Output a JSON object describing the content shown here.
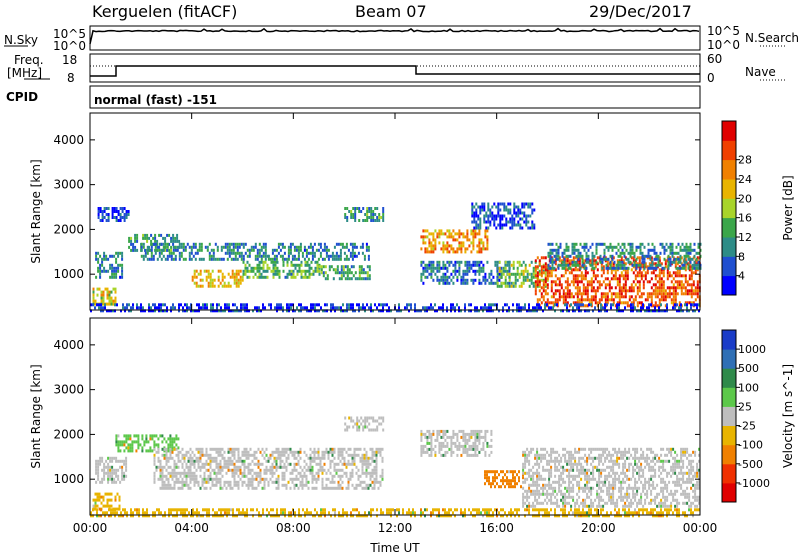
{
  "header": {
    "radar": "Kerguelen (fitACF)",
    "beam": "Beam 07",
    "date": "29/Dec/2017"
  },
  "top_panels": {
    "nsky": {
      "label": "N.Sky",
      "left_ticks": [
        "10^5",
        "10^0"
      ],
      "right_ticks": [
        "10^5",
        "10^0"
      ],
      "right_label": "N.Search"
    },
    "freq": {
      "label_line1": "Freq.",
      "label_line2": "[MHz]",
      "left_ticks": [
        "18",
        "8"
      ],
      "right_ticks": [
        "60",
        "0"
      ],
      "right_label": "Nave"
    },
    "cpid": {
      "label": "CPID",
      "text": "normal (fast) -151"
    }
  },
  "chart_data": [
    {
      "type": "heatmap",
      "name": "power",
      "ylabel": "Slant Range [km]",
      "xlabel": "",
      "x_ticks": [
        "00:00",
        "04:00",
        "08:00",
        "12:00",
        "16:00",
        "20:00",
        "00:00"
      ],
      "xlim_hours": [
        0,
        24
      ],
      "y_ticks": [
        1000,
        2000,
        3000,
        4000
      ],
      "ylim": [
        200,
        4600
      ],
      "colorbar": {
        "label": "Power [dB]",
        "ticks": [
          "4",
          "8",
          "12",
          "16",
          "20",
          "24",
          "28"
        ],
        "colors": [
          "#0000ff",
          "#1f4fd0",
          "#2d8c87",
          "#3aa64a",
          "#a8d42a",
          "#e8b400",
          "#f08000",
          "#f04000",
          "#e00000"
        ]
      },
      "regions": [
        {
          "t0": 0.1,
          "t1": 1.0,
          "r0": 300,
          "r1": 700,
          "v": 18
        },
        {
          "t0": 0.2,
          "t1": 1.3,
          "r0": 900,
          "r1": 1500,
          "v": 8
        },
        {
          "t0": 0.3,
          "t1": 1.5,
          "r0": 2200,
          "r1": 2500,
          "v": 5
        },
        {
          "t0": 1.5,
          "t1": 3.5,
          "r0": 1500,
          "r1": 1900,
          "v": 10
        },
        {
          "t0": 2.0,
          "t1": 7.0,
          "r0": 1300,
          "r1": 1700,
          "v": 9
        },
        {
          "t0": 4.0,
          "t1": 6.0,
          "r0": 700,
          "r1": 1100,
          "v": 20
        },
        {
          "t0": 6.0,
          "t1": 9.0,
          "r0": 900,
          "r1": 1300,
          "v": 12
        },
        {
          "t0": 7.0,
          "t1": 11.0,
          "r0": 1300,
          "r1": 1700,
          "v": 8
        },
        {
          "t0": 9.0,
          "t1": 11.0,
          "r0": 900,
          "r1": 1200,
          "v": 11
        },
        {
          "t0": 10.0,
          "t1": 11.5,
          "r0": 2200,
          "r1": 2500,
          "v": 10
        },
        {
          "t0": 13.0,
          "t1": 15.6,
          "r0": 1500,
          "r1": 2000,
          "v": 22
        },
        {
          "t0": 13.0,
          "t1": 16.5,
          "r0": 800,
          "r1": 1300,
          "v": 7
        },
        {
          "t0": 15.0,
          "t1": 17.5,
          "r0": 2000,
          "r1": 2600,
          "v": 5
        },
        {
          "t0": 16.0,
          "t1": 18.0,
          "r0": 700,
          "r1": 1300,
          "v": 14
        },
        {
          "t0": 17.5,
          "t1": 24.0,
          "r0": 300,
          "r1": 1400,
          "v": 26
        },
        {
          "t0": 18.0,
          "t1": 24.0,
          "r0": 1100,
          "r1": 1700,
          "v": 9
        },
        {
          "t0": 0.0,
          "t1": 24.0,
          "r0": 200,
          "r1": 350,
          "v": 4
        }
      ]
    },
    {
      "type": "heatmap",
      "name": "velocity",
      "ylabel": "Slant Range [km]",
      "xlabel": "Time UT",
      "x_ticks": [
        "00:00",
        "04:00",
        "08:00",
        "12:00",
        "16:00",
        "20:00",
        "00:00"
      ],
      "xlim_hours": [
        0,
        24
      ],
      "y_ticks": [
        1000,
        2000,
        3000,
        4000
      ],
      "ylim": [
        200,
        4600
      ],
      "colorbar": {
        "label": "Velocity [m s^-1]",
        "ticks": [
          "1000",
          "500",
          "100",
          "25",
          "-25",
          "-100",
          "-500",
          "-1000"
        ],
        "colors": [
          "#1a3cc8",
          "#2f6fb5",
          "#2f8a4a",
          "#5cc84a",
          "#bebebe",
          "#e8b400",
          "#f08000",
          "#f03000",
          "#e00000"
        ]
      },
      "regions": [
        {
          "t0": 0.1,
          "t1": 1.2,
          "r0": 300,
          "r1": 700,
          "v": -60
        },
        {
          "t0": 0.2,
          "t1": 1.4,
          "r0": 900,
          "r1": 1500,
          "v": 0
        },
        {
          "t0": 1.0,
          "t1": 3.5,
          "r0": 1600,
          "r1": 2000,
          "v": 60
        },
        {
          "t0": 2.5,
          "t1": 11.5,
          "r0": 800,
          "r1": 1700,
          "v": 0
        },
        {
          "t0": 10.0,
          "t1": 11.5,
          "r0": 2100,
          "r1": 2400,
          "v": 0
        },
        {
          "t0": 13.0,
          "t1": 15.8,
          "r0": 1500,
          "r1": 2100,
          "v": 0
        },
        {
          "t0": 15.5,
          "t1": 17.0,
          "r0": 800,
          "r1": 1200,
          "v": -200
        },
        {
          "t0": 17.0,
          "t1": 24.0,
          "r0": 400,
          "r1": 1700,
          "v": 0
        },
        {
          "t0": 0.0,
          "t1": 24.0,
          "r0": 200,
          "r1": 350,
          "v": -60
        }
      ]
    }
  ]
}
